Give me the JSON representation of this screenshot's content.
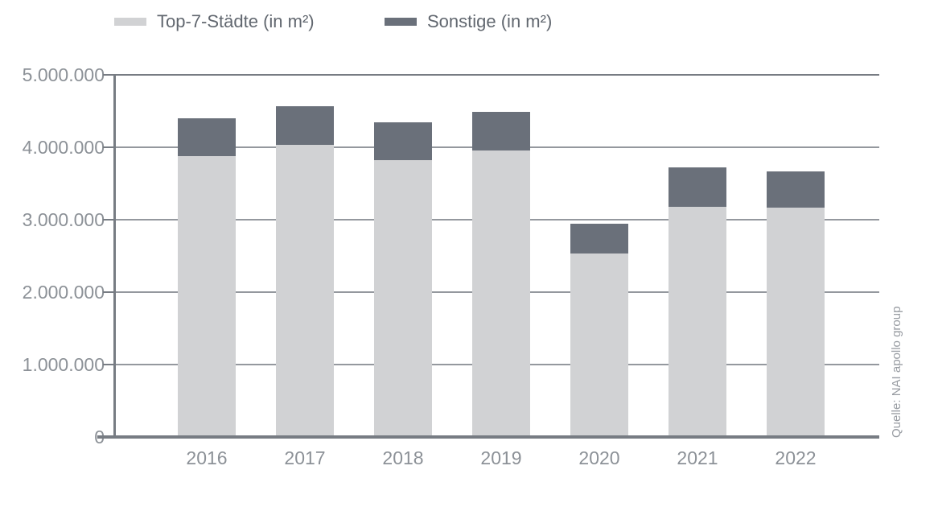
{
  "chart_data": {
    "type": "bar",
    "stacked": true,
    "categories": [
      "2016",
      "2017",
      "2018",
      "2019",
      "2020",
      "2021",
      "2022"
    ],
    "series": [
      {
        "name": "Top-7-Städte (in m²)",
        "color": "#d1d2d4",
        "values": [
          3880000,
          4030000,
          3820000,
          3960000,
          2530000,
          3180000,
          3170000
        ]
      },
      {
        "name": "Sonstige (in m²)",
        "color": "#6a707a",
        "values": [
          520000,
          540000,
          530000,
          530000,
          420000,
          540000,
          500000
        ]
      }
    ],
    "totals": [
      4400000,
      4570000,
      4350000,
      4490000,
      2950000,
      3720000,
      3670000
    ],
    "ylim": [
      0,
      5000000
    ],
    "y_ticks": [
      {
        "value": 5000000,
        "label": "5.000.000"
      },
      {
        "value": 4000000,
        "label": "4.000.000"
      },
      {
        "value": 3000000,
        "label": "3.000.000"
      },
      {
        "value": 2000000,
        "label": "2.000.000"
      },
      {
        "value": 1000000,
        "label": "1.000.000"
      },
      {
        "value": 0,
        "label": "0"
      }
    ],
    "grid": "horizontal",
    "legend_position": "top",
    "source": "Quelle: NAI apollo group"
  },
  "colors": {
    "axis": "#777c83",
    "grid": "#94989e",
    "axis_text": "#8c9197",
    "legend_text": "#61676f",
    "source_text": "#989ca2"
  }
}
